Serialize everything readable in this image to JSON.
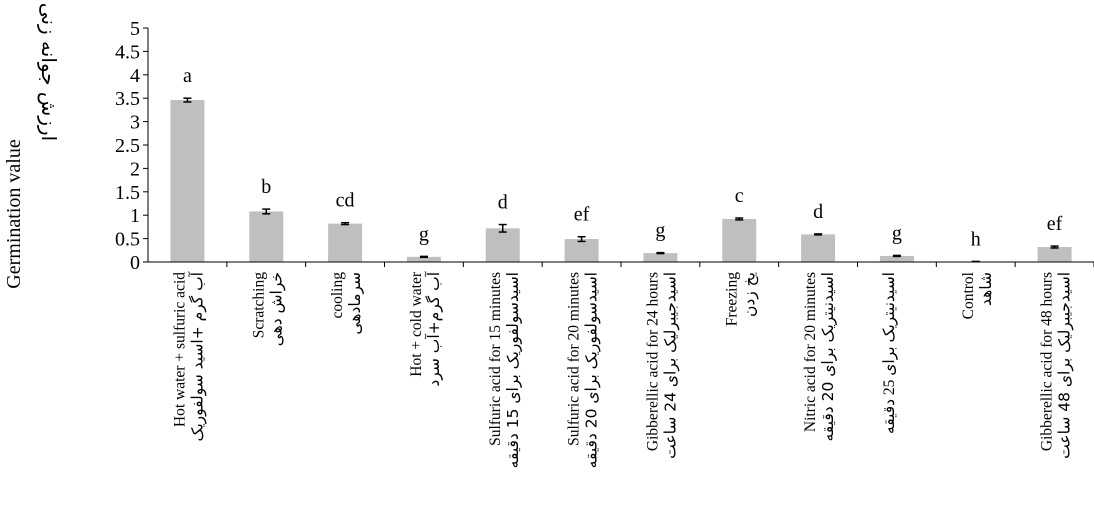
{
  "chart_data": {
    "type": "bar",
    "title": "",
    "ylabel": "Germination value",
    "ylabel_fa": "ارزش جوانه زنی",
    "ylim": [
      0,
      5
    ],
    "yticks": [
      "0",
      "0.5",
      "1",
      "1.5",
      "2",
      "2.5",
      "3",
      "3.5",
      "4",
      "4.5",
      "5"
    ],
    "ytick_values": [
      0,
      0.5,
      1,
      1.5,
      2,
      2.5,
      3,
      3.5,
      4,
      4.5,
      5
    ],
    "grid": false,
    "bar_color": "#bfbfbf",
    "categories": [
      {
        "en": "Hot water + sulfuric acid",
        "fa": "آب گرم +اسید سولفوریک"
      },
      {
        "en": "Scratching",
        "fa": "خراش دهی"
      },
      {
        "en": "cooling",
        "fa": "سرمادهی"
      },
      {
        "en": "Hot + cold water",
        "fa": "آب گرم+آب سرد"
      },
      {
        "en": "Sulfuric acid for 15 minutes",
        "fa": "اسیدسولفوریک برای 15 دقیقه"
      },
      {
        "en": "Sulfuric acid for 20 minutes",
        "fa": "اسیدسولفوریک برای 20 دقیقه"
      },
      {
        "en": "Gibberellic acid for 24 hours",
        "fa": "اسیدجیبرلیک برای 24 ساعت"
      },
      {
        "en": "Freezing",
        "fa": "یخ زدن"
      },
      {
        "en": "Nitric acid for 20 minutes",
        "fa": "اسیدنیتریک برای 20 دقیقه"
      },
      {
        "en": "اسیدنیتریک برای 25 دقیقه",
        "fa": "اسیدنیتریک برای 25 دقیقه"
      },
      {
        "en": "Control",
        "fa": "شاهد"
      },
      {
        "en": "Gibberellic acid for 48 hours",
        "fa": "اسیدجیبرلیک برای 48 ساعت"
      }
    ],
    "values": [
      3.46,
      1.08,
      0.82,
      0.11,
      0.72,
      0.49,
      0.19,
      0.92,
      0.59,
      0.13,
      0.01,
      0.32
    ],
    "errors": [
      0.04,
      0.05,
      0.02,
      0.01,
      0.08,
      0.05,
      0.01,
      0.02,
      0.01,
      0.01,
      0.0,
      0.02
    ],
    "letters": [
      "a",
      "b",
      "cd",
      "g",
      "d",
      "ef",
      "g",
      "c",
      "d",
      "g",
      "h",
      "ef"
    ]
  }
}
